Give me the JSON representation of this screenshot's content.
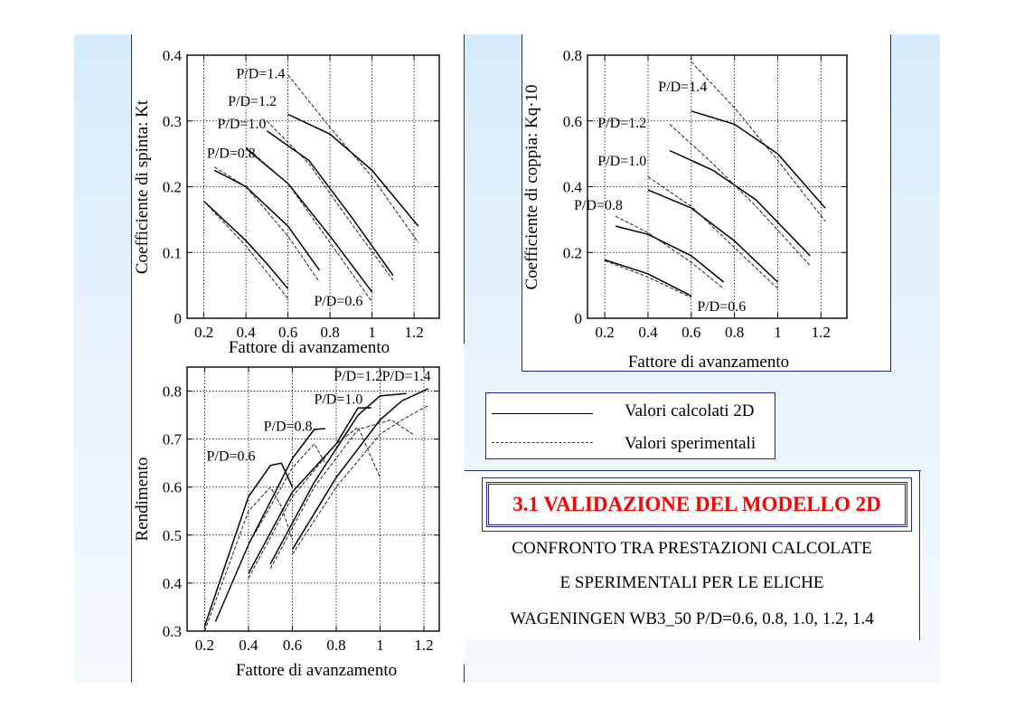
{
  "slide": {
    "title": "3.1 VALIDAZIONE DEL MODELLO  2D",
    "description_lines": [
      "CONFRONTO TRA PRESTAZIONI CALCOLATE",
      "E SPERIMENTALI PER LE ELICHE",
      "WAGENINGEN WB3_50  P/D=0.6, 0.8, 1.0, 1.2, 1.4"
    ],
    "legend": {
      "calculated_label": "Valori calcolati 2D",
      "experimental_label": "Valori sperimentali"
    },
    "colors": {
      "accent_border": "#1f2a8a",
      "title_red": "#ff0000",
      "background_blue": "#d6ebfb"
    }
  },
  "chart_data": [
    {
      "id": "kt",
      "type": "line",
      "xlabel": "Fattore di avanzamento",
      "ylabel": "Coefficiente di spinta: Kt",
      "xlim": [
        0.12,
        1.32
      ],
      "ylim": [
        0,
        0.4
      ],
      "xticks": [
        0.2,
        0.4,
        0.6,
        0.8,
        1,
        1.2
      ],
      "xtick_labels": [
        "0.2",
        "0.4",
        "0.6",
        "0.8",
        "1",
        "1.2"
      ],
      "yticks": [
        0,
        0.1,
        0.2,
        0.3,
        0.4
      ],
      "ytick_labels": [
        "0",
        "0.1",
        "0.2",
        "0.3",
        "0.4"
      ],
      "grid": true,
      "curve_labels": [
        {
          "text": "P/D=1.4",
          "x": 0.47,
          "y": 0.365
        },
        {
          "text": "P/D=1.2",
          "x": 0.43,
          "y": 0.323
        },
        {
          "text": "P/D=1.0",
          "x": 0.38,
          "y": 0.289
        },
        {
          "text": "P/D=0.8",
          "x": 0.33,
          "y": 0.244
        },
        {
          "text": "P/D=0.6",
          "x": 0.84,
          "y": 0.019
        }
      ],
      "series": [
        {
          "style": "calculated",
          "x": [
            0.2,
            0.4,
            0.5,
            0.6
          ],
          "y": [
            0.178,
            0.118,
            0.083,
            0.045
          ]
        },
        {
          "style": "experimental",
          "x": [
            0.2,
            0.4,
            0.6
          ],
          "y": [
            0.178,
            0.11,
            0.03
          ]
        },
        {
          "style": "calculated",
          "x": [
            0.25,
            0.4,
            0.6,
            0.75
          ],
          "y": [
            0.225,
            0.2,
            0.14,
            0.073
          ]
        },
        {
          "style": "experimental",
          "x": [
            0.25,
            0.4,
            0.6,
            0.75
          ],
          "y": [
            0.23,
            0.2,
            0.125,
            0.055
          ]
        },
        {
          "style": "calculated",
          "x": [
            0.4,
            0.6,
            0.8,
            1.0
          ],
          "y": [
            0.258,
            0.205,
            0.125,
            0.04
          ]
        },
        {
          "style": "experimental",
          "x": [
            0.4,
            0.6,
            0.8,
            1.0
          ],
          "y": [
            0.26,
            0.205,
            0.115,
            0.025
          ]
        },
        {
          "style": "calculated",
          "x": [
            0.5,
            0.7,
            0.9,
            1.1
          ],
          "y": [
            0.285,
            0.24,
            0.155,
            0.065
          ]
        },
        {
          "style": "experimental",
          "x": [
            0.5,
            0.7,
            0.9,
            1.1
          ],
          "y": [
            0.3,
            0.235,
            0.145,
            0.058
          ]
        },
        {
          "style": "calculated",
          "x": [
            0.6,
            0.8,
            1.0,
            1.22
          ],
          "y": [
            0.31,
            0.28,
            0.225,
            0.14
          ]
        },
        {
          "style": "experimental",
          "x": [
            0.6,
            0.8,
            1.0,
            1.22
          ],
          "y": [
            0.37,
            0.29,
            0.215,
            0.115
          ]
        }
      ]
    },
    {
      "id": "kq",
      "type": "line",
      "xlabel": "Fattore di avanzamento",
      "ylabel": "Coefficiente di coppia:  Kq·10",
      "xlim": [
        0.12,
        1.32
      ],
      "ylim": [
        0,
        0.8
      ],
      "xticks": [
        0.2,
        0.4,
        0.6,
        0.8,
        1,
        1.2
      ],
      "xtick_labels": [
        "0.2",
        "0.4",
        "0.6",
        "0.8",
        "1",
        "1.2"
      ],
      "yticks": [
        0,
        0.2,
        0.4,
        0.6,
        0.8
      ],
      "ytick_labels": [
        "0",
        "0.2",
        "0.4",
        "0.6",
        "0.8"
      ],
      "grid": true,
      "curve_labels": [
        {
          "text": "P/D=1.4",
          "x": 0.56,
          "y": 0.69
        },
        {
          "text": "P/D=1.2",
          "x": 0.28,
          "y": 0.58
        },
        {
          "text": "P/D=1.0",
          "x": 0.28,
          "y": 0.465
        },
        {
          "text": "P/D=0.8",
          "x": 0.17,
          "y": 0.33
        },
        {
          "text": "P/D=0.6",
          "x": 0.74,
          "y": 0.022
        }
      ],
      "series": [
        {
          "style": "calculated",
          "x": [
            0.2,
            0.4,
            0.6
          ],
          "y": [
            0.178,
            0.135,
            0.068
          ]
        },
        {
          "style": "experimental",
          "x": [
            0.2,
            0.4,
            0.6
          ],
          "y": [
            0.175,
            0.125,
            0.063
          ]
        },
        {
          "style": "calculated",
          "x": [
            0.25,
            0.4,
            0.6,
            0.75
          ],
          "y": [
            0.28,
            0.255,
            0.19,
            0.11
          ]
        },
        {
          "style": "experimental",
          "x": [
            0.25,
            0.4,
            0.6,
            0.75
          ],
          "y": [
            0.31,
            0.26,
            0.17,
            0.09
          ]
        },
        {
          "style": "calculated",
          "x": [
            0.4,
            0.6,
            0.8,
            1.0
          ],
          "y": [
            0.39,
            0.335,
            0.235,
            0.11
          ]
        },
        {
          "style": "experimental",
          "x": [
            0.4,
            0.6,
            0.8,
            1.0
          ],
          "y": [
            0.43,
            0.34,
            0.215,
            0.09
          ]
        },
        {
          "style": "calculated",
          "x": [
            0.5,
            0.7,
            0.9,
            1.15
          ],
          "y": [
            0.51,
            0.45,
            0.36,
            0.19
          ]
        },
        {
          "style": "experimental",
          "x": [
            0.5,
            0.7,
            0.9,
            1.15
          ],
          "y": [
            0.59,
            0.47,
            0.34,
            0.16
          ]
        },
        {
          "style": "calculated",
          "x": [
            0.6,
            0.8,
            1.0,
            1.22
          ],
          "y": [
            0.63,
            0.59,
            0.5,
            0.335
          ]
        },
        {
          "style": "experimental",
          "x": [
            0.6,
            0.8,
            1.0,
            1.22
          ],
          "y": [
            0.78,
            0.64,
            0.48,
            0.295
          ]
        }
      ]
    },
    {
      "id": "eta",
      "type": "line",
      "xlabel": "Fattore di avanzamento",
      "ylabel": "Rendimento",
      "xlim": [
        0.12,
        1.27
      ],
      "ylim": [
        0.3,
        0.85
      ],
      "xticks": [
        0.2,
        0.4,
        0.6,
        0.8,
        1,
        1.2
      ],
      "xtick_labels": [
        "0.2",
        "0.4",
        "0.6",
        "0.8",
        "1",
        "1.2"
      ],
      "yticks": [
        0.3,
        0.4,
        0.5,
        0.6,
        0.7,
        0.8
      ],
      "ytick_labels": [
        "0.3",
        "0.4",
        "0.5",
        "0.6",
        "0.7",
        "0.8"
      ],
      "grid": true,
      "curve_labels": [
        {
          "text": "P/D=1.2",
          "x": 0.9,
          "y": 0.822
        },
        {
          "text": "P/D=1.4",
          "x": 1.12,
          "y": 0.822
        },
        {
          "text": "P/D=1.0",
          "x": 0.81,
          "y": 0.774
        },
        {
          "text": "P/D=0.8",
          "x": 0.58,
          "y": 0.717
        },
        {
          "text": "P/D=0.6",
          "x": 0.32,
          "y": 0.655
        }
      ],
      "series": [
        {
          "style": "calculated",
          "x": [
            0.2,
            0.4,
            0.5,
            0.55,
            0.6
          ],
          "y": [
            0.31,
            0.58,
            0.645,
            0.65,
            0.6
          ]
        },
        {
          "style": "experimental",
          "x": [
            0.2,
            0.4,
            0.5,
            0.55,
            0.6
          ],
          "y": [
            0.3,
            0.55,
            0.6,
            0.56,
            0.49
          ]
        },
        {
          "style": "calculated",
          "x": [
            0.25,
            0.4,
            0.6,
            0.7,
            0.75
          ],
          "y": [
            0.32,
            0.48,
            0.66,
            0.72,
            0.722
          ]
        },
        {
          "style": "experimental",
          "x": [
            0.25,
            0.4,
            0.6,
            0.7,
            0.75
          ],
          "y": [
            0.32,
            0.48,
            0.64,
            0.69,
            0.65
          ]
        },
        {
          "style": "calculated",
          "x": [
            0.4,
            0.6,
            0.8,
            0.9,
            0.96
          ],
          "y": [
            0.42,
            0.59,
            0.69,
            0.765,
            0.765
          ]
        },
        {
          "style": "experimental",
          "x": [
            0.4,
            0.6,
            0.8,
            0.9,
            1.0
          ],
          "y": [
            0.41,
            0.58,
            0.69,
            0.725,
            0.62
          ]
        },
        {
          "style": "calculated",
          "x": [
            0.5,
            0.7,
            0.9,
            1.0,
            1.12
          ],
          "y": [
            0.44,
            0.61,
            0.75,
            0.79,
            0.795
          ]
        },
        {
          "style": "experimental",
          "x": [
            0.5,
            0.7,
            0.9,
            1.05,
            1.15
          ],
          "y": [
            0.43,
            0.6,
            0.72,
            0.74,
            0.71
          ]
        },
        {
          "style": "calculated",
          "x": [
            0.6,
            0.8,
            1.0,
            1.1,
            1.22
          ],
          "y": [
            0.47,
            0.62,
            0.74,
            0.78,
            0.805
          ]
        },
        {
          "style": "experimental",
          "x": [
            0.6,
            0.8,
            1.0,
            1.1,
            1.22
          ],
          "y": [
            0.46,
            0.6,
            0.71,
            0.74,
            0.77
          ]
        }
      ]
    }
  ]
}
